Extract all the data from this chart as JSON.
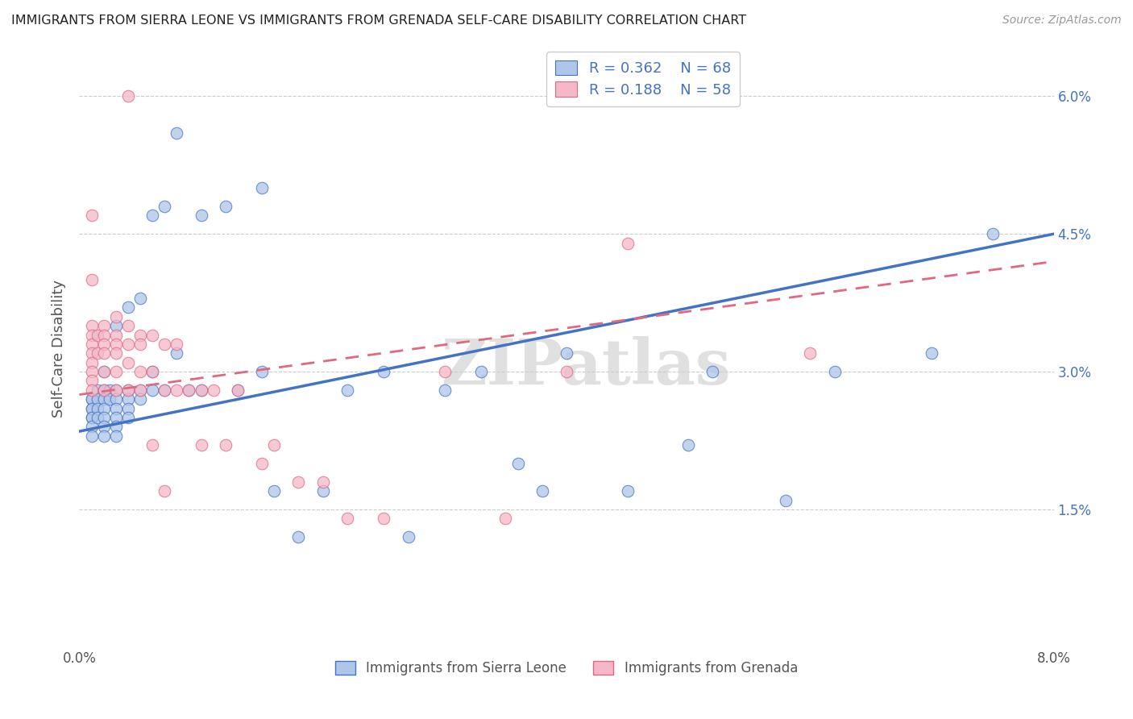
{
  "title": "IMMIGRANTS FROM SIERRA LEONE VS IMMIGRANTS FROM GRENADA SELF-CARE DISABILITY CORRELATION CHART",
  "source": "Source: ZipAtlas.com",
  "xlabel_blue": "Immigrants from Sierra Leone",
  "xlabel_pink": "Immigrants from Grenada",
  "ylabel": "Self-Care Disability",
  "xlim": [
    0.0,
    0.08
  ],
  "ylim": [
    0.0,
    0.065
  ],
  "xtick_positions": [
    0.0,
    0.08
  ],
  "xtick_labels": [
    "0.0%",
    "8.0%"
  ],
  "ytick_positions": [
    0.015,
    0.03,
    0.045,
    0.06
  ],
  "ytick_labels": [
    "1.5%",
    "3.0%",
    "4.5%",
    "6.0%"
  ],
  "legend_blue_R": "R = 0.362",
  "legend_blue_N": "N = 68",
  "legend_pink_R": "R = 0.188",
  "legend_pink_N": "N = 58",
  "blue_color": "#aec6e8",
  "pink_color": "#f4b8c8",
  "line_blue_color": "#4472c4",
  "line_pink_color": "#e06880",
  "blue_scatter": [
    [
      0.001,
      0.027
    ],
    [
      0.001,
      0.026
    ],
    [
      0.001,
      0.025
    ],
    [
      0.001,
      0.027
    ],
    [
      0.001,
      0.026
    ],
    [
      0.001,
      0.025
    ],
    [
      0.001,
      0.024
    ],
    [
      0.001,
      0.023
    ],
    [
      0.0015,
      0.028
    ],
    [
      0.0015,
      0.027
    ],
    [
      0.0015,
      0.026
    ],
    [
      0.0015,
      0.025
    ],
    [
      0.002,
      0.03
    ],
    [
      0.002,
      0.028
    ],
    [
      0.002,
      0.027
    ],
    [
      0.002,
      0.026
    ],
    [
      0.002,
      0.025
    ],
    [
      0.002,
      0.024
    ],
    [
      0.002,
      0.023
    ],
    [
      0.0025,
      0.028
    ],
    [
      0.0025,
      0.027
    ],
    [
      0.003,
      0.035
    ],
    [
      0.003,
      0.028
    ],
    [
      0.003,
      0.027
    ],
    [
      0.003,
      0.026
    ],
    [
      0.003,
      0.025
    ],
    [
      0.003,
      0.024
    ],
    [
      0.003,
      0.023
    ],
    [
      0.004,
      0.037
    ],
    [
      0.004,
      0.028
    ],
    [
      0.004,
      0.027
    ],
    [
      0.004,
      0.026
    ],
    [
      0.004,
      0.025
    ],
    [
      0.005,
      0.038
    ],
    [
      0.005,
      0.028
    ],
    [
      0.005,
      0.027
    ],
    [
      0.006,
      0.047
    ],
    [
      0.006,
      0.03
    ],
    [
      0.006,
      0.028
    ],
    [
      0.007,
      0.048
    ],
    [
      0.007,
      0.028
    ],
    [
      0.008,
      0.056
    ],
    [
      0.008,
      0.032
    ],
    [
      0.009,
      0.028
    ],
    [
      0.01,
      0.047
    ],
    [
      0.01,
      0.028
    ],
    [
      0.012,
      0.048
    ],
    [
      0.013,
      0.028
    ],
    [
      0.015,
      0.05
    ],
    [
      0.015,
      0.03
    ],
    [
      0.016,
      0.017
    ],
    [
      0.018,
      0.012
    ],
    [
      0.02,
      0.017
    ],
    [
      0.022,
      0.028
    ],
    [
      0.025,
      0.03
    ],
    [
      0.027,
      0.012
    ],
    [
      0.03,
      0.028
    ],
    [
      0.033,
      0.03
    ],
    [
      0.036,
      0.02
    ],
    [
      0.038,
      0.017
    ],
    [
      0.04,
      0.032
    ],
    [
      0.045,
      0.017
    ],
    [
      0.05,
      0.022
    ],
    [
      0.052,
      0.03
    ],
    [
      0.058,
      0.016
    ],
    [
      0.062,
      0.03
    ],
    [
      0.07,
      0.032
    ],
    [
      0.075,
      0.045
    ]
  ],
  "pink_scatter": [
    [
      0.001,
      0.047
    ],
    [
      0.001,
      0.04
    ],
    [
      0.001,
      0.035
    ],
    [
      0.001,
      0.034
    ],
    [
      0.001,
      0.033
    ],
    [
      0.001,
      0.032
    ],
    [
      0.001,
      0.031
    ],
    [
      0.001,
      0.03
    ],
    [
      0.001,
      0.029
    ],
    [
      0.001,
      0.028
    ],
    [
      0.0015,
      0.034
    ],
    [
      0.0015,
      0.032
    ],
    [
      0.002,
      0.035
    ],
    [
      0.002,
      0.034
    ],
    [
      0.002,
      0.033
    ],
    [
      0.002,
      0.032
    ],
    [
      0.002,
      0.03
    ],
    [
      0.002,
      0.028
    ],
    [
      0.003,
      0.036
    ],
    [
      0.003,
      0.034
    ],
    [
      0.003,
      0.033
    ],
    [
      0.003,
      0.032
    ],
    [
      0.003,
      0.03
    ],
    [
      0.003,
      0.028
    ],
    [
      0.004,
      0.035
    ],
    [
      0.004,
      0.033
    ],
    [
      0.004,
      0.031
    ],
    [
      0.004,
      0.028
    ],
    [
      0.004,
      0.06
    ],
    [
      0.005,
      0.034
    ],
    [
      0.005,
      0.033
    ],
    [
      0.005,
      0.03
    ],
    [
      0.005,
      0.028
    ],
    [
      0.006,
      0.034
    ],
    [
      0.006,
      0.03
    ],
    [
      0.006,
      0.022
    ],
    [
      0.007,
      0.033
    ],
    [
      0.007,
      0.028
    ],
    [
      0.007,
      0.017
    ],
    [
      0.008,
      0.033
    ],
    [
      0.008,
      0.028
    ],
    [
      0.009,
      0.028
    ],
    [
      0.01,
      0.028
    ],
    [
      0.01,
      0.022
    ],
    [
      0.011,
      0.028
    ],
    [
      0.012,
      0.022
    ],
    [
      0.013,
      0.028
    ],
    [
      0.015,
      0.02
    ],
    [
      0.016,
      0.022
    ],
    [
      0.018,
      0.018
    ],
    [
      0.02,
      0.018
    ],
    [
      0.022,
      0.014
    ],
    [
      0.025,
      0.014
    ],
    [
      0.03,
      0.03
    ],
    [
      0.035,
      0.014
    ],
    [
      0.04,
      0.03
    ],
    [
      0.045,
      0.044
    ],
    [
      0.06,
      0.032
    ]
  ],
  "blue_line_x": [
    0.0,
    0.08
  ],
  "blue_line_y": [
    0.0235,
    0.045
  ],
  "pink_line_x": [
    0.0,
    0.08
  ],
  "pink_line_y": [
    0.0275,
    0.042
  ],
  "watermark": "ZIPatlas",
  "background_color": "#ffffff",
  "grid_color": "#cccccc"
}
